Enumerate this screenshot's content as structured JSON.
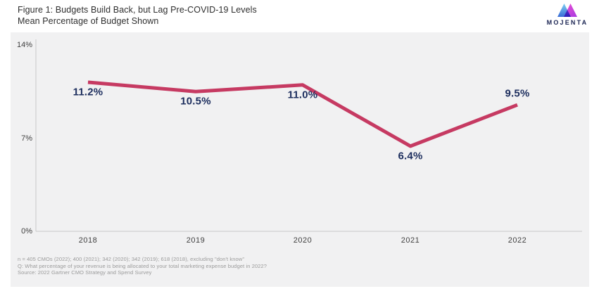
{
  "header": {
    "title": "Figure 1: Budgets Build Back, but Lag Pre-COVID-19 Levels",
    "subtitle": "Mean Percentage of Budget Shown",
    "logo_text": "MOJENTA"
  },
  "chart_data": {
    "type": "line",
    "title": "Figure 1: Budgets Build Back, but Lag Pre-COVID-19 Levels",
    "subtitle": "Mean Percentage of Budget Shown",
    "categories": [
      "2018",
      "2019",
      "2020",
      "2021",
      "2022"
    ],
    "values": [
      11.2,
      10.5,
      11.0,
      6.4,
      9.5
    ],
    "point_labels": [
      "11.2%",
      "10.5%",
      "11.0%",
      "6.4%",
      "9.5%"
    ],
    "label_side": [
      "below",
      "below",
      "below",
      "below",
      "above"
    ],
    "yticks": [
      {
        "label": "14%",
        "value": 14
      },
      {
        "label": "7%",
        "value": 7
      },
      {
        "label": "0%",
        "value": 0
      }
    ],
    "ylim": [
      0,
      14
    ],
    "xlabel": "",
    "ylabel": "",
    "grid": false,
    "legend": "none",
    "line_color": "#c63a62",
    "point_label_color": "#1d2e5e",
    "axis_color": "#c8c8c8",
    "panel_background": "#f1f1f2"
  },
  "footnotes": [
    "n = 405 CMOs (2022); 400 (2021); 342 (2020); 342 (2019); 618 (2018), excluding \"don't know\"",
    "Q: What percentage of your revenue is being allocated to your total marketing expense budget in 2022?",
    "Source: 2022 Gartner CMO Strategy and Spend Survey"
  ],
  "logo_colors": {
    "blue_top": "#7fd0f2",
    "blue_bottom": "#3a6cd6",
    "pink_top": "#f04fd4",
    "pink_bottom": "#a73be0",
    "text": "#1b2553"
  }
}
